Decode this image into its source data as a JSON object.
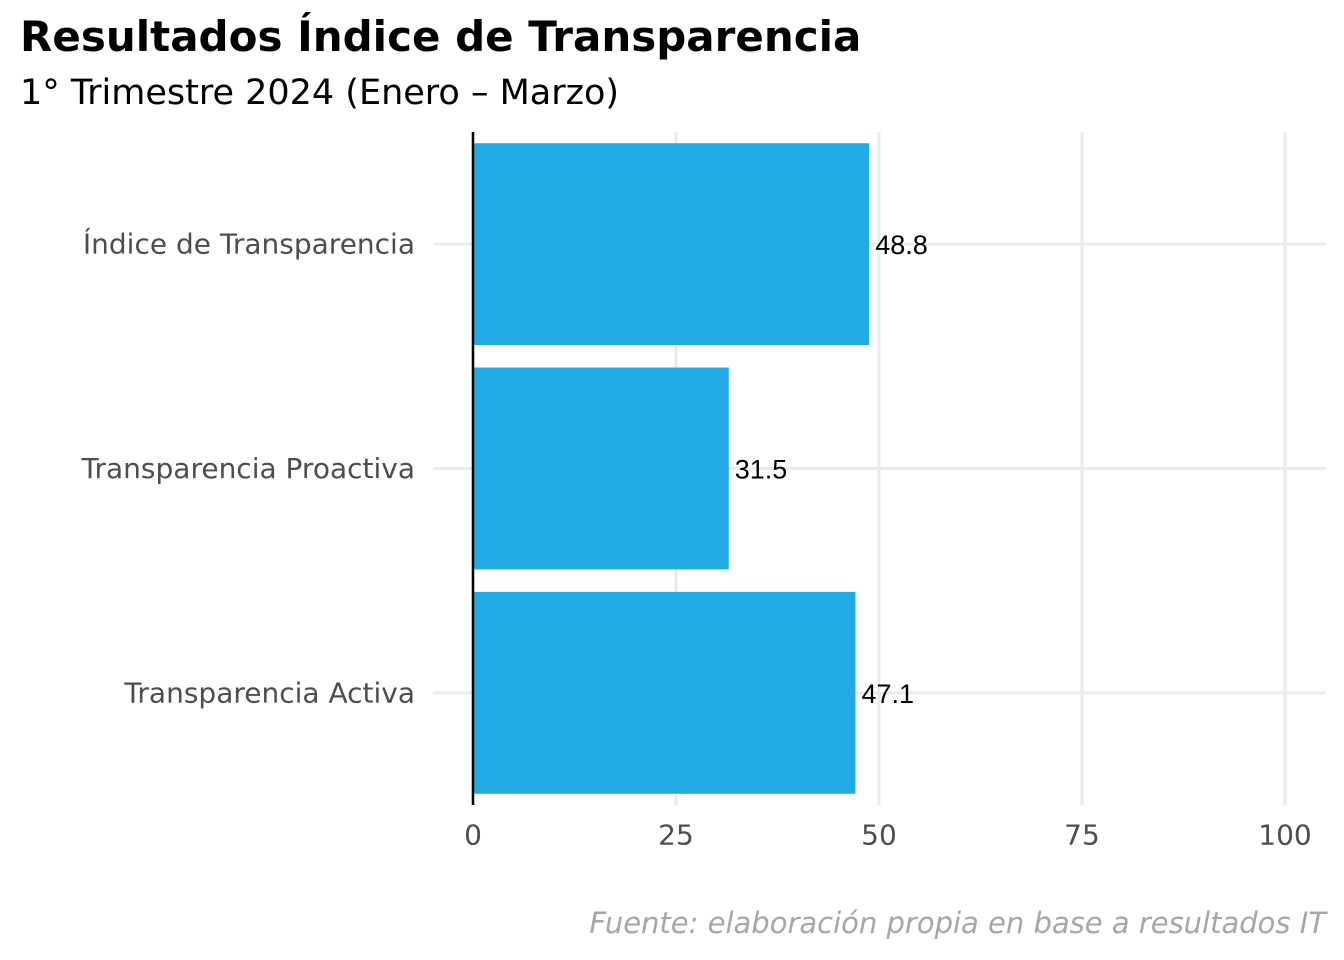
{
  "chart_data": {
    "type": "bar",
    "orientation": "horizontal",
    "title": "Resultados Índice de Transparencia",
    "subtitle": "1° Trimestre 2024 (Enero – Marzo)",
    "caption": "Fuente: elaboración propia en base a resultados IT",
    "categories": [
      "Índice de Transparencia",
      "Transparencia Proactiva",
      "Transparencia Activa"
    ],
    "values": [
      48.8,
      31.5,
      47.1
    ],
    "data_labels": [
      "48.8",
      "31.5",
      "47.1"
    ],
    "xlim": [
      0,
      100
    ],
    "x_ticks": [
      0,
      25,
      50,
      75,
      100
    ],
    "x_tick_labels": [
      "0",
      "25",
      "50",
      "75",
      "100"
    ],
    "xlabel": "",
    "ylabel": "",
    "grid": true,
    "legend": "none",
    "colors": {
      "bar": "#22abe2",
      "grid": "#ebebeb",
      "axis": "#000000",
      "tick_text": "#4d4d4d",
      "caption": "#a6a6a6"
    }
  }
}
